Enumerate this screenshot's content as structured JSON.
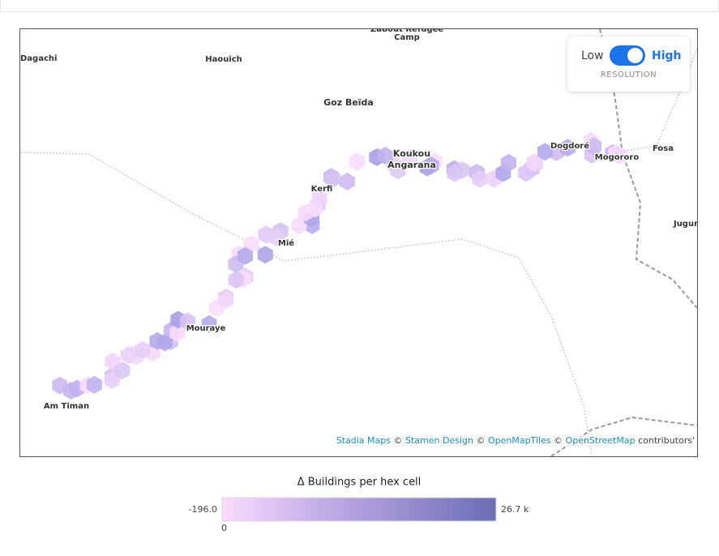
{
  "map": {
    "places": [
      "Zabout Refugee",
      "Camp",
      "Dagachi",
      "Haouich",
      "Goz Beïda",
      "Koukou",
      "Angarana",
      "Kerfi",
      "Mié",
      "Mouraye",
      "Am Timan",
      "Dogdoré",
      "Mogororo",
      "Fosa",
      "Jugur"
    ]
  },
  "resolution_toggle": {
    "low": "Low",
    "high": "High",
    "caption": "RESOLUTION"
  },
  "attribution": {
    "links": [
      "Stadia Maps",
      "Stamen Design",
      "OpenMapTiles",
      "OpenStreetMap"
    ],
    "separator": "©",
    "suffix": "contributors'"
  },
  "legend": {
    "title": "Δ Buildings per hex cell",
    "min": {
      "value": -196,
      "label": "-196.0"
    },
    "max": {
      "value": 26700,
      "label": "26.7 k"
    },
    "ticks": [
      0
    ]
  }
}
